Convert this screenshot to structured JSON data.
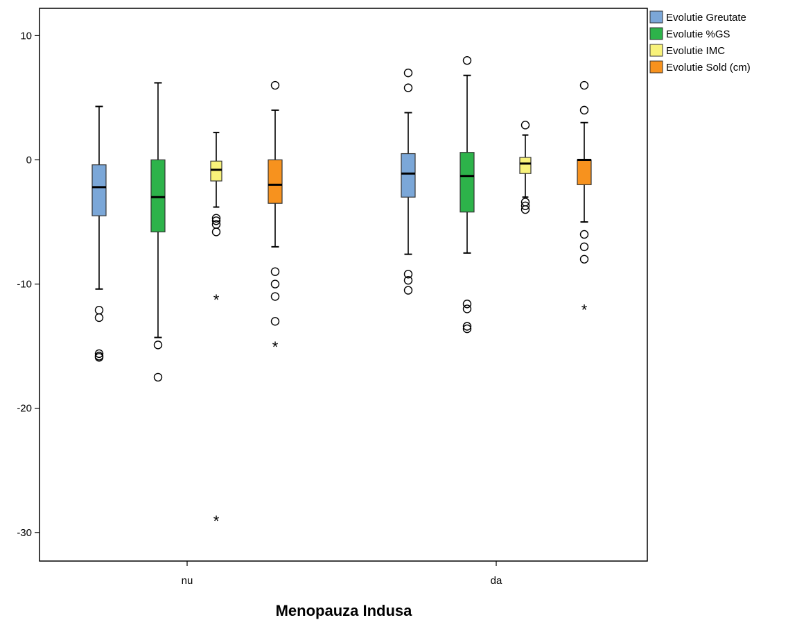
{
  "chart_data": {
    "type": "boxplot",
    "xlabel": "Menopauza Indusa",
    "ylabel": "",
    "ylim": [
      -32.3,
      12.2
    ],
    "yticks": [
      10,
      0,
      -10,
      -20,
      -30
    ],
    "grid": false,
    "legend_position": "top-right-outside",
    "categories": [
      "nu",
      "da"
    ],
    "series": [
      {
        "name": "Evolutie Greutate",
        "color": "#7BA7D8",
        "boxes": [
          {
            "category": "nu",
            "whisker_low": -10.4,
            "q1": -4.5,
            "median": -2.2,
            "q3": -0.4,
            "whisker_high": 4.3,
            "outliers": [
              -12.1,
              -12.7,
              -15.6,
              -15.8,
              -15.9
            ],
            "extremes": []
          },
          {
            "category": "da",
            "whisker_low": -7.6,
            "q1": -3.0,
            "median": -1.1,
            "q3": 0.5,
            "whisker_high": 3.8,
            "outliers": [
              7.0,
              5.8,
              -9.2,
              -9.7,
              -10.5
            ],
            "extremes": []
          }
        ]
      },
      {
        "name": "Evolutie %GS",
        "color": "#2DB34A",
        "boxes": [
          {
            "category": "nu",
            "whisker_low": -14.3,
            "q1": -5.8,
            "median": -3.0,
            "q3": 0.0,
            "whisker_high": 6.2,
            "outliers": [
              -14.9,
              -17.5
            ],
            "extremes": []
          },
          {
            "category": "da",
            "whisker_low": -7.5,
            "q1": -4.2,
            "median": -1.3,
            "q3": 0.6,
            "whisker_high": 6.8,
            "outliers": [
              8.0,
              -11.6,
              -12.0,
              -13.4,
              -13.6
            ],
            "extremes": []
          }
        ]
      },
      {
        "name": "Evolutie IMC",
        "color": "#F8F27A",
        "boxes": [
          {
            "category": "nu",
            "whisker_low": -3.8,
            "q1": -1.7,
            "median": -0.8,
            "q3": -0.1,
            "whisker_high": 2.2,
            "outliers": [
              -4.7,
              -4.9,
              -5.2,
              -5.8
            ],
            "extremes": [
              -11.2,
              -29.0
            ]
          },
          {
            "category": "da",
            "whisker_low": -3.0,
            "q1": -1.1,
            "median": -0.3,
            "q3": 0.2,
            "whisker_high": 2.0,
            "outliers": [
              2.8,
              -3.4,
              -3.7,
              -4.0
            ],
            "extremes": []
          }
        ]
      },
      {
        "name": "Evolutie Sold (cm)",
        "color": "#F7921E",
        "boxes": [
          {
            "category": "nu",
            "whisker_low": -7.0,
            "q1": -3.5,
            "median": -2.0,
            "q3": 0.0,
            "whisker_high": 4.0,
            "outliers": [
              6.0,
              -9.0,
              -10.0,
              -11.0,
              -13.0
            ],
            "extremes": [
              -15.0
            ]
          },
          {
            "category": "da",
            "whisker_low": -5.0,
            "q1": -2.0,
            "median": 0.0,
            "q3": 0.0,
            "whisker_high": 3.0,
            "outliers": [
              6.0,
              4.0,
              -6.0,
              -7.0,
              -8.0
            ],
            "extremes": [
              -12.0
            ]
          }
        ]
      }
    ]
  }
}
